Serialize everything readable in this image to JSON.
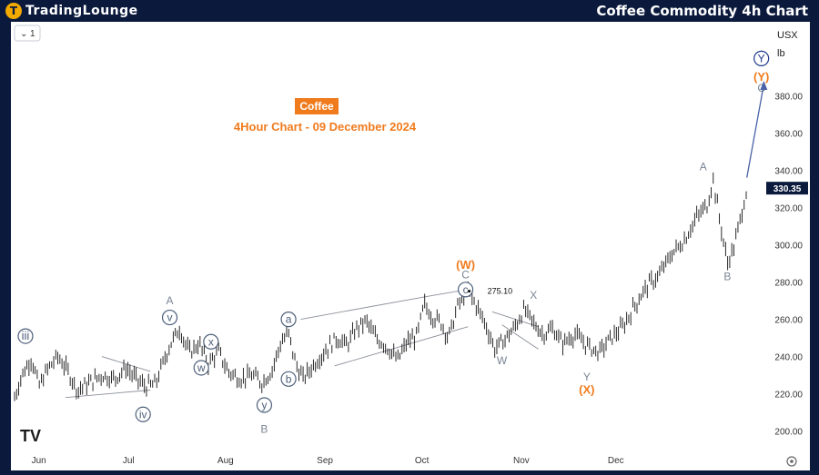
{
  "header": {
    "logo_mark": "T",
    "logo_word_1": "TradingLounge",
    "chart_title": "Coffee Commodity 4h Chart"
  },
  "toolbar": {
    "interval_label": "1",
    "currency": "USX",
    "unit": "lb",
    "settings_icon": "gear-icon",
    "chevron_icon": "chevron-down-icon"
  },
  "annotation_box": {
    "label": "Coffee",
    "subtitle": "4Hour Chart - 09 December 2024"
  },
  "watermark": "TV",
  "colors": {
    "navy": "#0b1a3c",
    "orange": "#f07b1d",
    "wave_circle": "#4d5f7a",
    "price_line": "#000000",
    "arrow": "#4a63a6"
  },
  "chart_data": {
    "type": "line",
    "x_ticks": [
      "Jun",
      "Jul",
      "Aug",
      "Sep",
      "Oct",
      "Nov",
      "Dec"
    ],
    "y_ticks": [
      200,
      220,
      240,
      260,
      280,
      300,
      320,
      340,
      360,
      380
    ],
    "ylim": [
      193,
      405
    ],
    "last_price": "330.35",
    "peak_label": "275.10",
    "series": [
      {
        "values": [
          {
            "x": 0,
            "y": 218
          },
          {
            "x": 0.3,
            "y": 230
          },
          {
            "x": 0.7,
            "y": 239
          },
          {
            "x": 1.0,
            "y": 224
          },
          {
            "x": 1.4,
            "y": 234
          },
          {
            "x": 1.8,
            "y": 240
          },
          {
            "x": 2.2,
            "y": 232
          },
          {
            "x": 2.6,
            "y": 222
          },
          {
            "x": 3.1,
            "y": 226
          },
          {
            "x": 3.6,
            "y": 230
          },
          {
            "x": 4.1,
            "y": 228
          },
          {
            "x": 4.6,
            "y": 234
          },
          {
            "x": 5.0,
            "y": 228
          },
          {
            "x": 5.4,
            "y": 224
          },
          {
            "x": 5.8,
            "y": 225
          },
          {
            "x": 6.4,
            "y": 246
          },
          {
            "x": 6.8,
            "y": 255
          },
          {
            "x": 7.2,
            "y": 242
          },
          {
            "x": 7.6,
            "y": 247
          },
          {
            "x": 8.0,
            "y": 236
          },
          {
            "x": 8.4,
            "y": 243
          },
          {
            "x": 8.8,
            "y": 232
          },
          {
            "x": 9.3,
            "y": 228
          },
          {
            "x": 9.8,
            "y": 230
          },
          {
            "x": 10.2,
            "y": 226
          },
          {
            "x": 10.6,
            "y": 232
          },
          {
            "x": 11.0,
            "y": 248
          },
          {
            "x": 11.3,
            "y": 252
          },
          {
            "x": 11.6,
            "y": 236
          },
          {
            "x": 11.9,
            "y": 228
          },
          {
            "x": 12.3,
            "y": 235
          },
          {
            "x": 12.8,
            "y": 243
          },
          {
            "x": 13.3,
            "y": 250
          },
          {
            "x": 13.7,
            "y": 246
          },
          {
            "x": 14.1,
            "y": 255
          },
          {
            "x": 14.5,
            "y": 259
          },
          {
            "x": 14.9,
            "y": 250
          },
          {
            "x": 15.3,
            "y": 246
          },
          {
            "x": 15.8,
            "y": 238
          },
          {
            "x": 16.2,
            "y": 248
          },
          {
            "x": 16.6,
            "y": 251
          },
          {
            "x": 16.9,
            "y": 268
          },
          {
            "x": 17.2,
            "y": 262
          },
          {
            "x": 17.6,
            "y": 258
          },
          {
            "x": 17.9,
            "y": 250
          },
          {
            "x": 18.3,
            "y": 268
          },
          {
            "x": 18.7,
            "y": 275
          },
          {
            "x": 19.1,
            "y": 266
          },
          {
            "x": 19.5,
            "y": 255
          },
          {
            "x": 19.8,
            "y": 244
          },
          {
            "x": 20.2,
            "y": 249
          },
          {
            "x": 20.6,
            "y": 255
          },
          {
            "x": 21.0,
            "y": 265
          },
          {
            "x": 21.4,
            "y": 258
          },
          {
            "x": 21.8,
            "y": 252
          },
          {
            "x": 22.2,
            "y": 255
          },
          {
            "x": 22.6,
            "y": 247
          },
          {
            "x": 23.1,
            "y": 252
          },
          {
            "x": 23.6,
            "y": 246
          },
          {
            "x": 24.1,
            "y": 242
          },
          {
            "x": 24.6,
            "y": 250
          },
          {
            "x": 25.1,
            "y": 256
          },
          {
            "x": 25.6,
            "y": 268
          },
          {
            "x": 26.1,
            "y": 278
          },
          {
            "x": 26.6,
            "y": 284
          },
          {
            "x": 27.1,
            "y": 295
          },
          {
            "x": 27.6,
            "y": 302
          },
          {
            "x": 28.1,
            "y": 314
          },
          {
            "x": 28.6,
            "y": 322
          },
          {
            "x": 28.8,
            "y": 336
          },
          {
            "x": 29.1,
            "y": 312
          },
          {
            "x": 29.4,
            "y": 290
          },
          {
            "x": 29.7,
            "y": 300
          },
          {
            "x": 30.0,
            "y": 318
          },
          {
            "x": 30.2,
            "y": 330
          }
        ]
      }
    ],
    "wave_labels": [
      {
        "text": "iii",
        "circled": true,
        "color": "#4d5f7a"
      },
      {
        "text": "iv",
        "circled": true,
        "color": "#4d5f7a"
      },
      {
        "text": "A",
        "circled": false,
        "color": "#7a8593"
      },
      {
        "text": "v",
        "circled": true,
        "color": "#4d5f7a"
      },
      {
        "text": "x",
        "circled": true,
        "color": "#4d5f7a"
      },
      {
        "text": "w",
        "circled": true,
        "color": "#4d5f7a"
      },
      {
        "text": "y",
        "circled": true,
        "color": "#4d5f7a"
      },
      {
        "text": "B",
        "circled": false,
        "color": "#7a8593"
      },
      {
        "text": "a",
        "circled": true,
        "color": "#4d5f7a"
      },
      {
        "text": "b",
        "circled": true,
        "color": "#4d5f7a"
      },
      {
        "text": "(W)",
        "circled": false,
        "color": "#f07b1d"
      },
      {
        "text": "C",
        "circled": false,
        "color": "#7a8593"
      },
      {
        "text": "c",
        "circled": true,
        "color": "#4d5f7a"
      },
      {
        "text": "W",
        "circled": false,
        "color": "#7a8593"
      },
      {
        "text": "X",
        "circled": false,
        "color": "#7a8593"
      },
      {
        "text": "Y",
        "circled": false,
        "color": "#7a8593"
      },
      {
        "text": "(X)",
        "circled": false,
        "color": "#f07b1d"
      },
      {
        "text": "A",
        "circled": false,
        "color": "#7a8593"
      },
      {
        "text": "B",
        "circled": false,
        "color": "#7a8593"
      },
      {
        "text": "Y",
        "circled": true,
        "color": "#1f3a8a"
      },
      {
        "text": "(Y)",
        "circled": false,
        "color": "#f07b1d"
      },
      {
        "text": "C",
        "circled": false,
        "color": "#7a8593"
      }
    ]
  }
}
